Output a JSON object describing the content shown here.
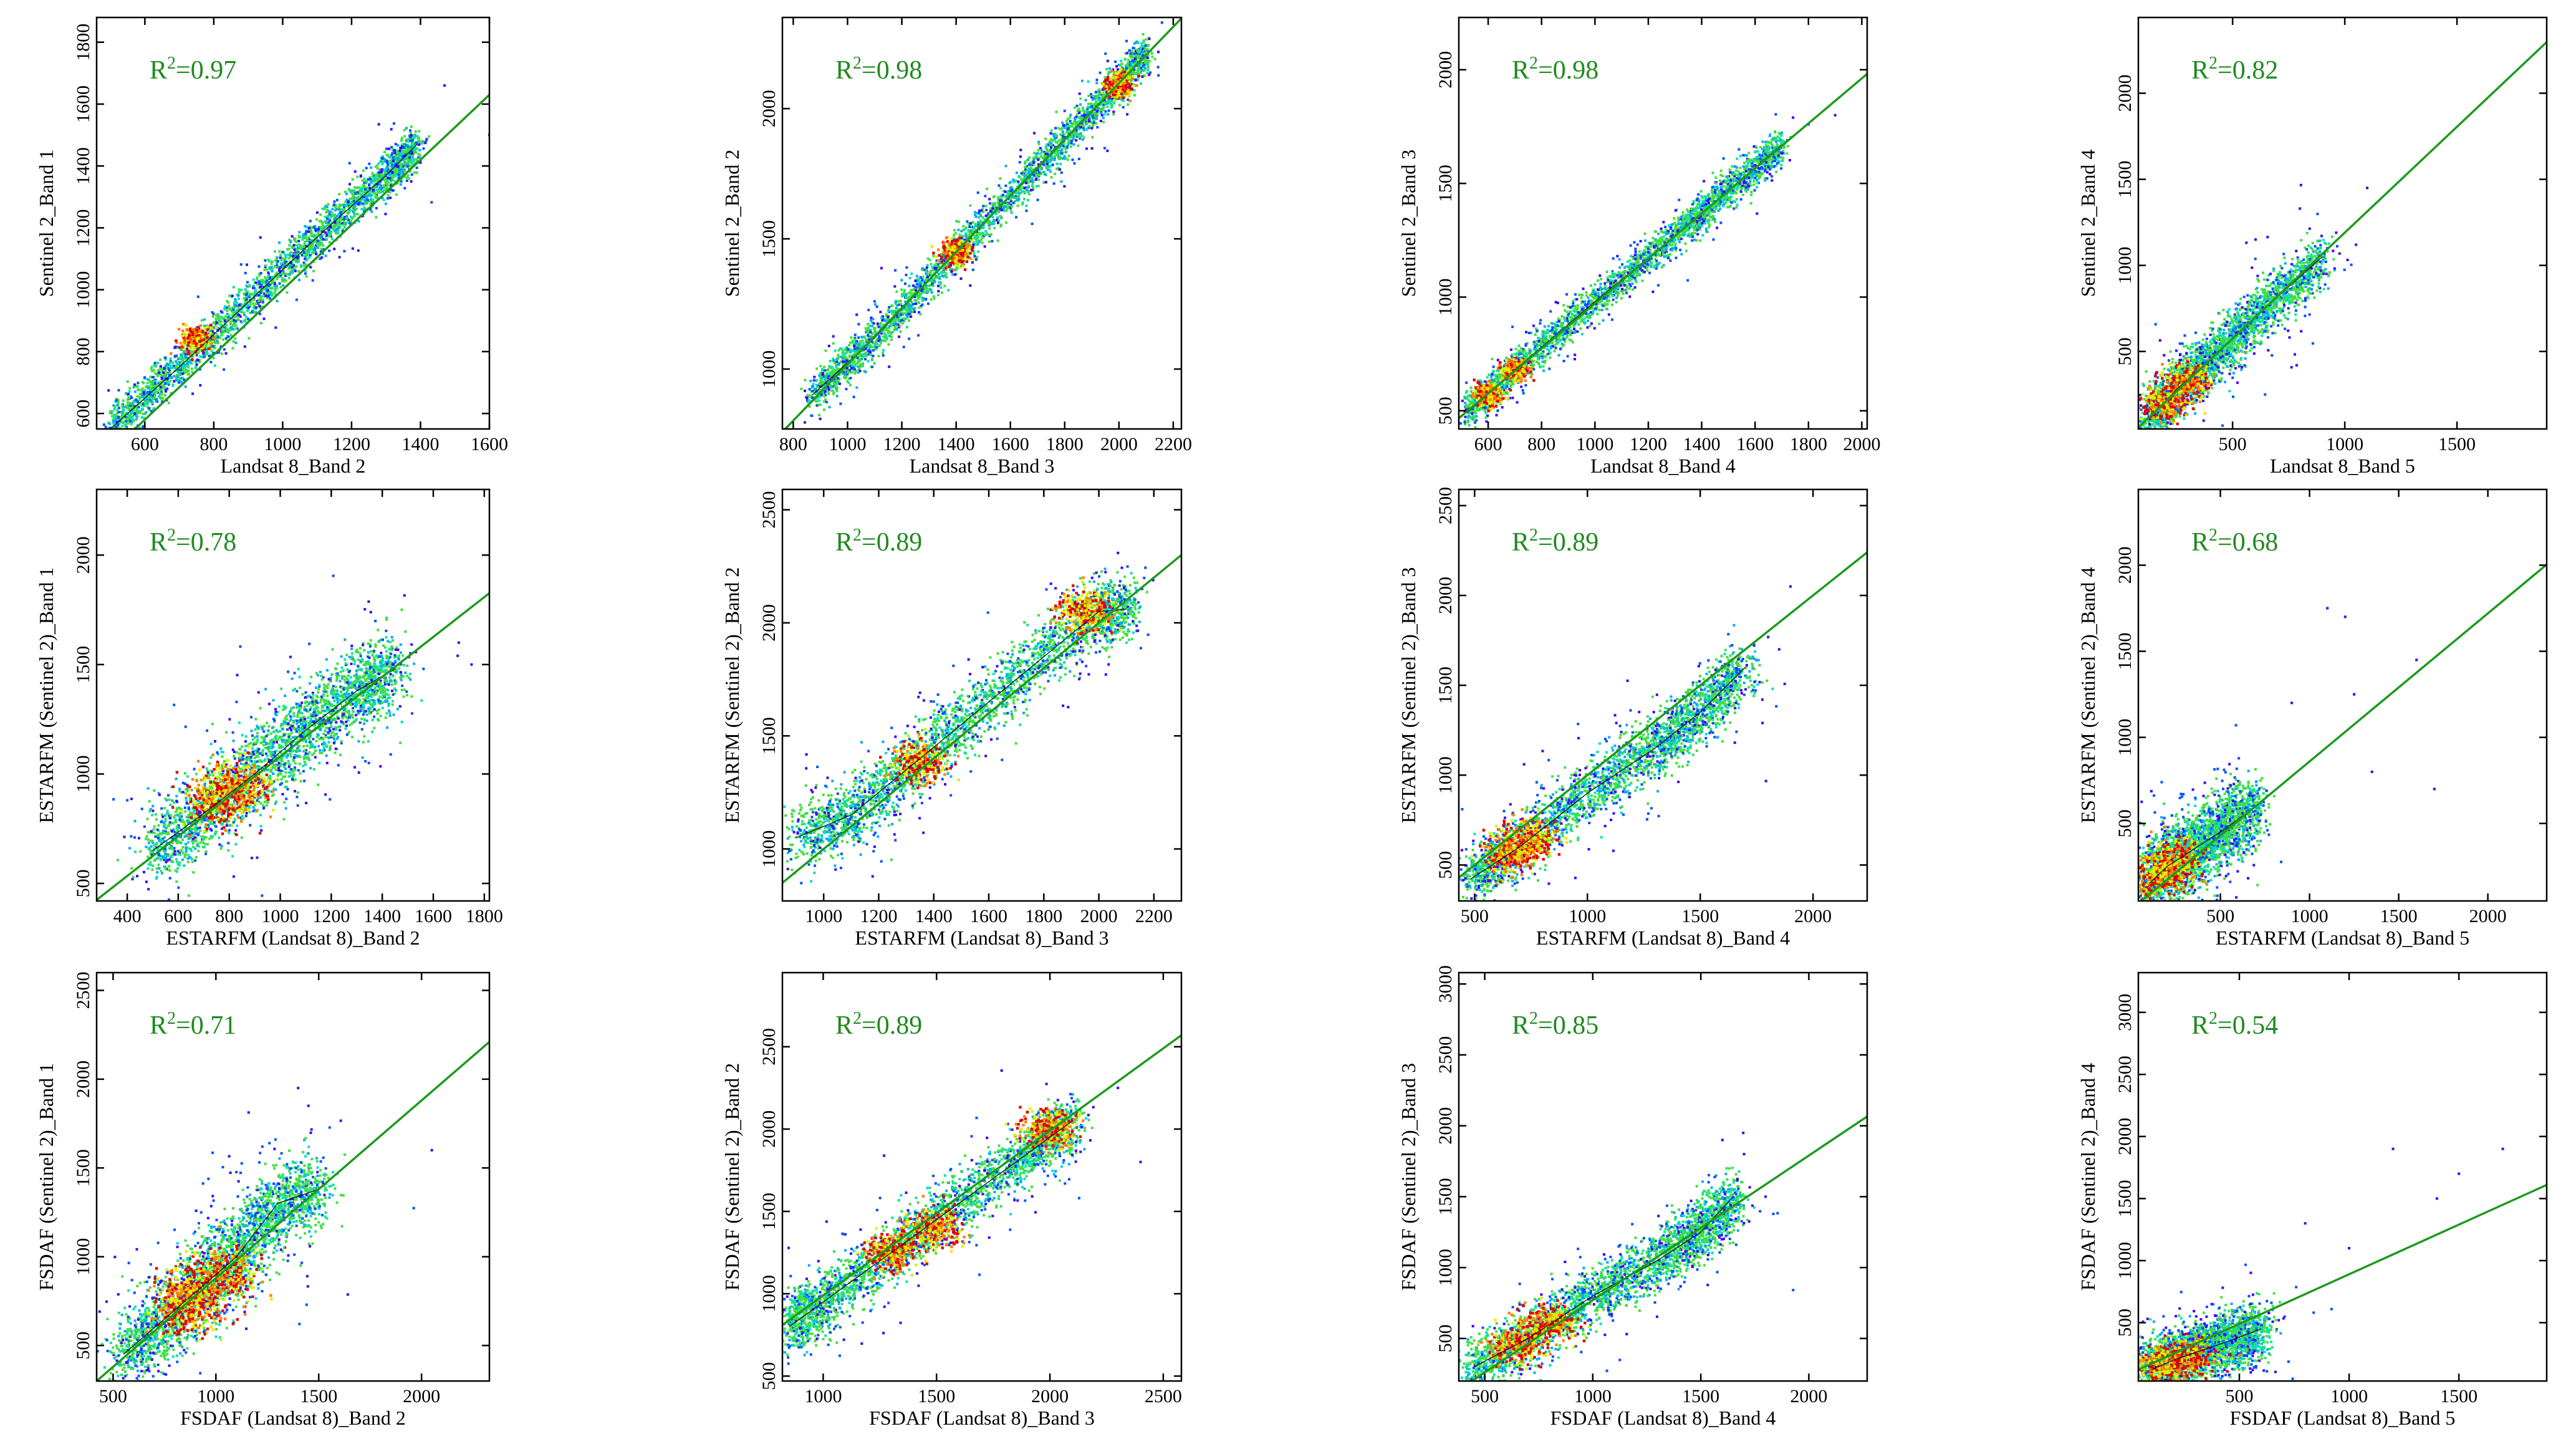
{
  "figure": {
    "description_colors": {
      "fit_line": "#1e9a1e",
      "r2_text": "#1f8a1f",
      "axis": "#000000"
    },
    "colormap": [
      "#3a00ff",
      "#0050ff",
      "#00aaff",
      "#00e0c0",
      "#40e040",
      "#c8ff00",
      "#ffe000",
      "#ff8000",
      "#e00000"
    ]
  },
  "chart_data": [
    {
      "type": "scatter",
      "r2_label": "0.97",
      "xlabel": "Landsat 8_Band 2",
      "ylabel": "Sentinel 2_Band 1",
      "xlim": [
        460,
        1600
      ],
      "ylim": [
        550,
        1880
      ],
      "xticks": [
        600,
        800,
        1000,
        1200,
        1400,
        1600
      ],
      "yticks": [
        600,
        800,
        1000,
        1200,
        1400,
        1600,
        1800
      ],
      "fit": {
        "slope": 1.05,
        "intercept": -50
      },
      "cloud": [
        [
          500,
          550
        ],
        [
          700,
          750
        ],
        [
          900,
          960
        ],
        [
          1100,
          1170
        ],
        [
          1300,
          1370
        ],
        [
          1390,
          1470
        ]
      ],
      "spread": 30,
      "hot": [
        [
          750,
          840
        ]
      ],
      "outliers": [
        [
          1470,
          1660
        ],
        [
          1600,
          1500
        ]
      ]
    },
    {
      "type": "scatter",
      "r2_label": "0.98",
      "xlabel": "Landsat 8_Band 3",
      "ylabel": "Sentinel 2_Band 2",
      "xlim": [
        760,
        2230
      ],
      "ylim": [
        770,
        2350
      ],
      "xticks": [
        800,
        1000,
        1200,
        1400,
        1600,
        1800,
        2000,
        2200
      ],
      "yticks": [
        1000,
        1500,
        2000
      ],
      "fit": {
        "slope": 1.08,
        "intercept": -62
      },
      "cloud": [
        [
          870,
          900
        ],
        [
          1100,
          1120
        ],
        [
          1400,
          1450
        ],
        [
          1700,
          1770
        ],
        [
          1950,
          2040
        ],
        [
          2100,
          2210
        ]
      ],
      "spread": 35,
      "hot": [
        [
          1400,
          1450
        ],
        [
          2000,
          2090
        ]
      ],
      "outliers": []
    },
    {
      "type": "scatter",
      "r2_label": "0.98",
      "xlabel": "Landsat 8_Band 4",
      "ylabel": "Sentinel 2_Band 3",
      "xlim": [
        490,
        2020
      ],
      "ylim": [
        420,
        2230
      ],
      "xticks": [
        600,
        800,
        1000,
        1200,
        1400,
        1600,
        1800,
        2000
      ],
      "yticks": [
        500,
        1000,
        1500,
        2000
      ],
      "fit": {
        "slope": 0.99,
        "intercept": -18
      },
      "cloud": [
        [
          520,
          490
        ],
        [
          700,
          680
        ],
        [
          1000,
          980
        ],
        [
          1300,
          1270
        ],
        [
          1500,
          1470
        ],
        [
          1700,
          1670
        ]
      ],
      "spread": 35,
      "hot": [
        [
          600,
          570
        ],
        [
          700,
          680
        ]
      ],
      "outliers": [
        [
          1900,
          1800
        ],
        [
          1800,
          1760
        ]
      ]
    },
    {
      "type": "scatter",
      "r2_label": "0.82",
      "xlabel": "Landsat 8_Band 5",
      "ylabel": "Sentinel 2_Band 4",
      "xlim": [
        80,
        1900
      ],
      "ylim": [
        50,
        2440
      ],
      "xticks": [
        500,
        1000,
        1500
      ],
      "yticks": [
        500,
        1000,
        1500,
        2000
      ],
      "fit": {
        "slope": 1.23,
        "intercept": -40
      },
      "cloud": [
        [
          130,
          110
        ],
        [
          250,
          280
        ],
        [
          400,
          450
        ],
        [
          600,
          700
        ],
        [
          900,
          1050
        ]
      ],
      "spread": 70,
      "hot": [
        [
          200,
          200
        ],
        [
          300,
          330
        ]
      ],
      "outliers": [
        [
          1100,
          1450
        ],
        [
          1050,
          1120
        ],
        [
          800,
          1330
        ]
      ]
    },
    {
      "type": "scatter",
      "r2_label": "0.78",
      "xlabel": "ESTARFM (Landsat 8)_Band 2",
      "ylabel": "ESTARFM (Sentinel 2)_Band 1",
      "xlim": [
        280,
        1820
      ],
      "ylim": [
        420,
        2300
      ],
      "xticks": [
        400,
        600,
        800,
        1000,
        1200,
        1400,
        1600,
        1800
      ],
      "yticks": [
        500,
        1000,
        1500,
        2000
      ],
      "fit": {
        "slope": 0.91,
        "intercept": 170
      },
      "cloud": [
        [
          500,
          650
        ],
        [
          700,
          820
        ],
        [
          900,
          1000
        ],
        [
          1100,
          1200
        ],
        [
          1300,
          1380
        ],
        [
          1450,
          1480
        ]
      ],
      "spread": 90,
      "hot": [
        [
          750,
          880
        ],
        [
          850,
          950
        ]
      ],
      "outliers": [
        [
          1750,
          1500
        ],
        [
          1700,
          1600
        ]
      ]
    },
    {
      "type": "scatter",
      "r2_label": "0.89",
      "xlabel": "ESTARFM (Landsat 8)_Band 3",
      "ylabel": "ESTARFM (Sentinel 2)_Band 2",
      "xlim": [
        850,
        2300
      ],
      "ylim": [
        770,
        2590
      ],
      "xticks": [
        1000,
        1200,
        1400,
        1600,
        1800,
        2000,
        2200
      ],
      "yticks": [
        1000,
        1500,
        2000,
        2500
      ],
      "fit": {
        "slope": 1.0,
        "intercept": 0
      },
      "cloud": [
        [
          900,
          1050
        ],
        [
          1100,
          1150
        ],
        [
          1300,
          1350
        ],
        [
          1500,
          1550
        ],
        [
          1750,
          1800
        ],
        [
          2000,
          2050
        ],
        [
          2100,
          2060
        ]
      ],
      "spread": 70,
      "hot": [
        [
          1350,
          1380
        ],
        [
          1950,
          2050
        ]
      ],
      "outliers": []
    },
    {
      "type": "scatter",
      "r2_label": "0.89",
      "xlabel": "ESTARFM (Landsat 8)_Band 4",
      "ylabel": "ESTARFM (Sentinel 2)_Band 3",
      "xlim": [
        430,
        2240
      ],
      "ylim": [
        300,
        2590
      ],
      "xticks": [
        500,
        1000,
        1500,
        2000
      ],
      "yticks": [
        500,
        1000,
        1500,
        2000,
        2500
      ],
      "fit": {
        "slope": 1.0,
        "intercept": 0
      },
      "cloud": [
        [
          480,
          420
        ],
        [
          700,
          600
        ],
        [
          1000,
          900
        ],
        [
          1300,
          1150
        ],
        [
          1500,
          1350
        ],
        [
          1700,
          1600
        ]
      ],
      "spread": 80,
      "hot": [
        [
          650,
          560
        ],
        [
          750,
          640
        ]
      ],
      "outliers": [
        [
          1900,
          2050
        ],
        [
          1850,
          1700
        ]
      ]
    },
    {
      "type": "scatter",
      "r2_label": "0.68",
      "xlabel": "ESTARFM (Landsat 8)_Band 5",
      "ylabel": "ESTARFM (Sentinel 2)_Band 4",
      "xlim": [
        40,
        2330
      ],
      "ylim": [
        50,
        2440
      ],
      "xticks": [
        500,
        1000,
        1500,
        2000
      ],
      "yticks": [
        500,
        1000,
        1500,
        2000
      ],
      "fit": {
        "slope": 0.86,
        "intercept": 0
      },
      "cloud": [
        [
          100,
          150
        ],
        [
          200,
          250
        ],
        [
          350,
          350
        ],
        [
          500,
          450
        ],
        [
          700,
          600
        ]
      ],
      "spread": 100,
      "hot": [
        [
          150,
          200
        ],
        [
          250,
          280
        ]
      ],
      "outliers": [
        [
          1100,
          1750
        ],
        [
          1200,
          1700
        ],
        [
          1600,
          1450
        ],
        [
          1250,
          1250
        ],
        [
          1350,
          800
        ],
        [
          1700,
          700
        ],
        [
          900,
          1200
        ]
      ]
    },
    {
      "type": "scatter",
      "r2_label": "0.71",
      "xlabel": "FSDAF (Landsat 8)_Band 2",
      "ylabel": "FSDAF (Sentinel 2)_Band 1",
      "xlim": [
        420,
        2330
      ],
      "ylim": [
        300,
        2600
      ],
      "xticks": [
        500,
        1000,
        1500,
        2000
      ],
      "yticks": [
        500,
        1000,
        1500,
        2000,
        2500
      ],
      "fit": {
        "slope": 1.0,
        "intercept": -120
      },
      "cloud": [
        [
          550,
          450
        ],
        [
          750,
          650
        ],
        [
          950,
          850
        ],
        [
          1100,
          1000
        ],
        [
          1300,
          1300
        ],
        [
          1500,
          1380
        ]
      ],
      "spread": 110,
      "hot": [
        [
          900,
          800
        ],
        [
          1050,
          900
        ],
        [
          850,
          700
        ]
      ],
      "outliers": [
        [
          1400,
          1950
        ],
        [
          1450,
          1850
        ],
        [
          2050,
          1600
        ]
      ]
    },
    {
      "type": "scatter",
      "r2_label": "0.89",
      "xlabel": "FSDAF (Landsat 8)_Band 3",
      "ylabel": "FSDAF (Sentinel 2)_Band 2",
      "xlim": [
        820,
        2580
      ],
      "ylim": [
        470,
        2950
      ],
      "xticks": [
        1000,
        1500,
        2000,
        2500
      ],
      "yticks": [
        500,
        1000,
        1500,
        2000,
        2500
      ],
      "fit": {
        "slope": 1.0,
        "intercept": -10
      },
      "cloud": [
        [
          850,
          800
        ],
        [
          1000,
          950
        ],
        [
          1300,
          1250
        ],
        [
          1600,
          1550
        ],
        [
          1900,
          1850
        ],
        [
          2100,
          2050
        ]
      ],
      "spread": 85,
      "hot": [
        [
          1300,
          1250
        ],
        [
          1500,
          1400
        ],
        [
          2000,
          2000
        ]
      ],
      "outliers": [
        [
          2400,
          1800
        ],
        [
          2300,
          2250
        ]
      ]
    },
    {
      "type": "scatter",
      "r2_label": "0.85",
      "xlabel": "FSDAF (Landsat 8)_Band 4",
      "ylabel": "FSDAF (Sentinel 2)_Band 3",
      "xlim": [
        380,
        2270
      ],
      "ylim": [
        200,
        3080
      ],
      "xticks": [
        500,
        1000,
        1500,
        2000
      ],
      "yticks": [
        500,
        1000,
        1500,
        2000,
        2500,
        3000
      ],
      "fit": {
        "slope": 1.02,
        "intercept": -250
      },
      "cloud": [
        [
          450,
          300
        ],
        [
          700,
          500
        ],
        [
          1000,
          800
        ],
        [
          1300,
          1050
        ],
        [
          1500,
          1250
        ],
        [
          1650,
          1500
        ]
      ],
      "spread": 90,
      "hot": [
        [
          650,
          450
        ],
        [
          800,
          600
        ]
      ],
      "outliers": [
        [
          1600,
          1900
        ],
        [
          1700,
          1800
        ],
        [
          1800,
          1500
        ]
      ]
    },
    {
      "type": "scatter",
      "r2_label": "0.54",
      "xlabel": "FSDAF (Landsat 8)_Band 5",
      "ylabel": "FSDAF (Sentinel 2)_Band 4",
      "xlim": [
        40,
        1900
      ],
      "ylim": [
        30,
        3320
      ],
      "xticks": [
        500,
        1000,
        1500
      ],
      "yticks": [
        500,
        1000,
        1500,
        2000,
        2500,
        3000
      ],
      "fit": {
        "slope": 0.8,
        "intercept": 90
      },
      "cloud": [
        [
          100,
          120
        ],
        [
          200,
          200
        ],
        [
          300,
          260
        ],
        [
          450,
          350
        ],
        [
          600,
          450
        ]
      ],
      "spread": 110,
      "hot": [
        [
          150,
          150
        ],
        [
          250,
          220
        ]
      ],
      "outliers": [
        [
          1200,
          1900
        ],
        [
          1500,
          1700
        ],
        [
          1700,
          1900
        ],
        [
          800,
          1300
        ],
        [
          1000,
          1100
        ],
        [
          1400,
          1500
        ]
      ]
    }
  ]
}
